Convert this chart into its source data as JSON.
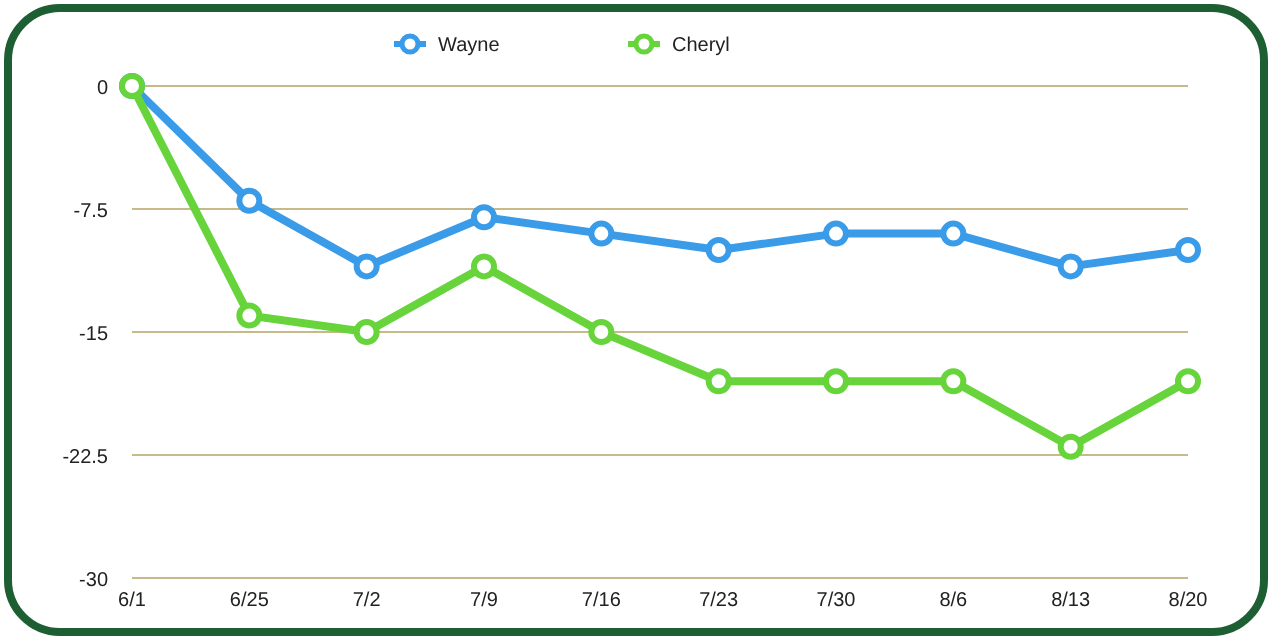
{
  "chart_data": {
    "type": "line",
    "categories": [
      "6/1",
      "6/25",
      "7/2",
      "7/9",
      "7/16",
      "7/23",
      "7/30",
      "8/6",
      "8/13",
      "8/20"
    ],
    "series": [
      {
        "name": "Wayne",
        "color": "#3a9be8",
        "values": [
          0,
          -7,
          -11,
          -8,
          -9,
          -10,
          -9,
          -9,
          -11,
          -10
        ]
      },
      {
        "name": "Cheryl",
        "color": "#66d43a",
        "values": [
          0,
          -14,
          -15,
          -11,
          -15,
          -18,
          -18,
          -18,
          -22,
          -18
        ]
      }
    ],
    "ylim": [
      -30,
      0
    ],
    "yticks": [
      0,
      -7.5,
      -15,
      -22.5,
      -30
    ],
    "grid": "y",
    "legend": "top",
    "marker": "circle",
    "line_style": "solid"
  }
}
